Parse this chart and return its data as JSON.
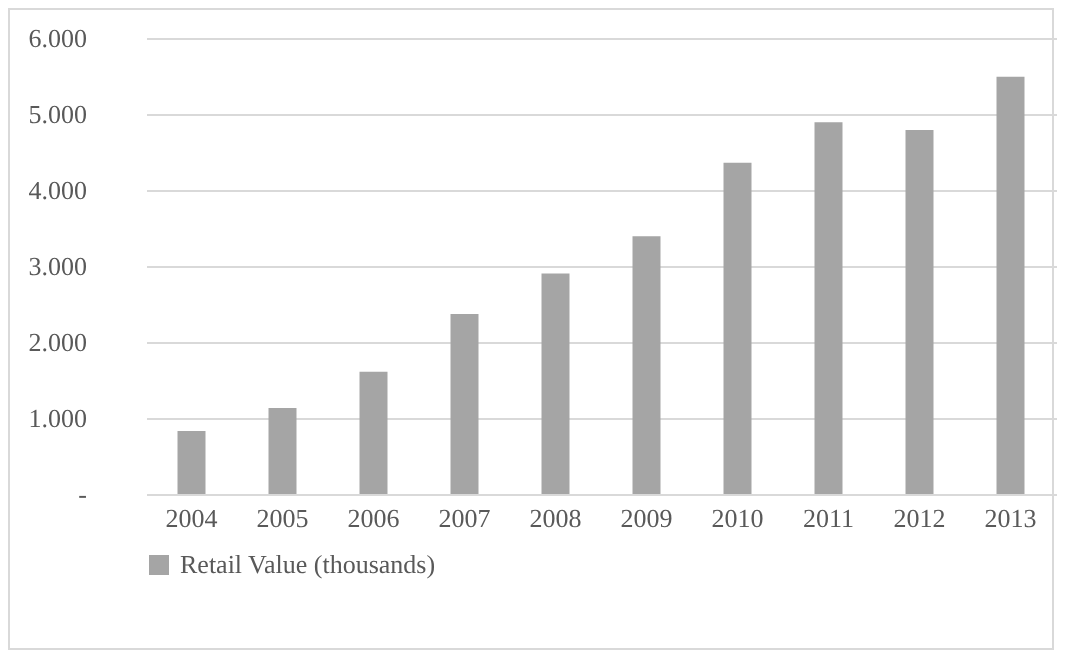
{
  "chart_data": {
    "type": "bar",
    "categories": [
      "2004",
      "2005",
      "2006",
      "2007",
      "2008",
      "2009",
      "2010",
      "2011",
      "2012",
      "2013"
    ],
    "series": [
      {
        "name": "Retail Value (thousands)",
        "color": "#a5a5a5",
        "values": [
          830,
          1130,
          1610,
          2370,
          2900,
          3390,
          4360,
          4890,
          4790,
          5490
        ]
      }
    ],
    "ylim": [
      0,
      6000
    ],
    "yticks": [
      {
        "value": 0,
        "label": "-"
      },
      {
        "value": 1000,
        "label": "1.000"
      },
      {
        "value": 2000,
        "label": "2.000"
      },
      {
        "value": 3000,
        "label": "3.000"
      },
      {
        "value": 4000,
        "label": "4.000"
      },
      {
        "value": 5000,
        "label": "5.000"
      },
      {
        "value": 6000,
        "label": "6.000"
      }
    ],
    "grid": "y",
    "legend": "bottom"
  }
}
